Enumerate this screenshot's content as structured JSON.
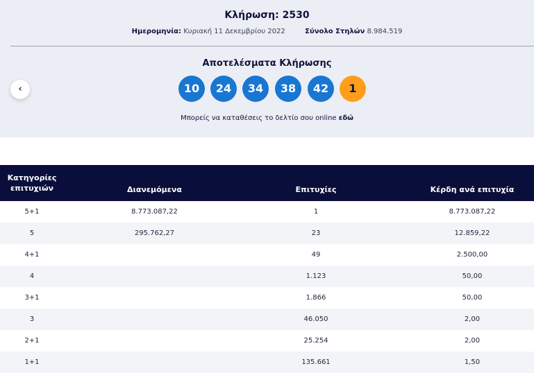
{
  "draw": {
    "title": "Κλήρωση: 2530",
    "date_label": "Ημερομηνία:",
    "date_value": "Κυριακή 11 Δεκεμβρίου 2022",
    "columns_label": "Σύνολο Στηλών",
    "columns_value": "8.984.519"
  },
  "results": {
    "title": "Αποτελέσματα Κλήρωσης",
    "numbers": [
      "10",
      "24",
      "34",
      "38",
      "42"
    ],
    "joker": "1",
    "deposit_text": "Μπορείς να καταθέσεις το δελτίο σου online",
    "deposit_link": "εδώ",
    "main_ball_color": "#1976d2",
    "joker_ball_color": "#ff9e1b",
    "prev_icon": "chevron-left-icon"
  },
  "table": {
    "headers": {
      "category_line1": "Κατηγορίες",
      "category_line2": "επιτυχιών",
      "distributed": "Διανεμόμενα",
      "winners": "Επιτυχίες",
      "prize": "Κέρδη ανά επιτυχία"
    },
    "rows": [
      {
        "category": "5+1",
        "distributed": "8.773.087,22",
        "winners": "1",
        "prize": "8.773.087,22"
      },
      {
        "category": "5",
        "distributed": "295.762,27",
        "winners": "23",
        "prize": "12.859,22"
      },
      {
        "category": "4+1",
        "distributed": "",
        "winners": "49",
        "prize": "2.500,00"
      },
      {
        "category": "4",
        "distributed": "",
        "winners": "1.123",
        "prize": "50,00"
      },
      {
        "category": "3+1",
        "distributed": "",
        "winners": "1.866",
        "prize": "50,00"
      },
      {
        "category": "3",
        "distributed": "",
        "winners": "46.050",
        "prize": "2,00"
      },
      {
        "category": "2+1",
        "distributed": "",
        "winners": "25.254",
        "prize": "2,00"
      },
      {
        "category": "1+1",
        "distributed": "",
        "winners": "135.661",
        "prize": "1,50"
      }
    ],
    "header_color": "#0a0e3a"
  }
}
